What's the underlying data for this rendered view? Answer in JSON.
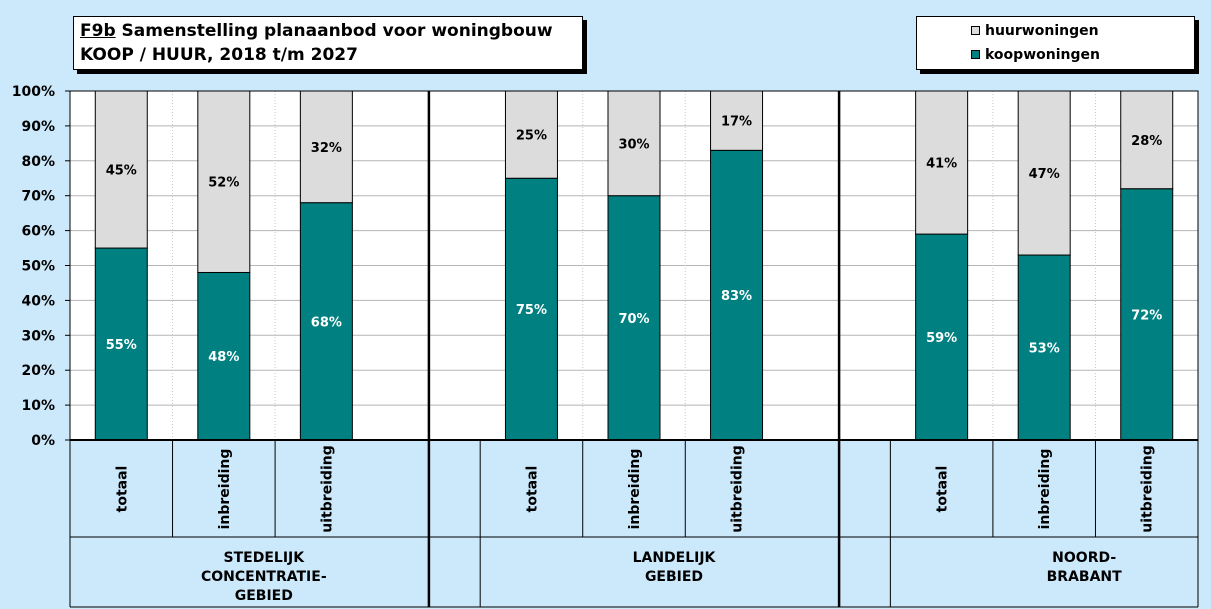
{
  "title": {
    "code": "F9b",
    "line1": "Samenstelling planaanbod voor woningbouw",
    "line2": "KOOP / HUUR,  2018 t/m 2027"
  },
  "colors": {
    "koop": "#008080",
    "huur": "#dcdcdc",
    "background": "#cce9fb"
  },
  "chart_data": {
    "type": "bar",
    "stacked": true,
    "y_unit": "percent",
    "ylim": [
      0,
      100
    ],
    "y_ticks": [
      "0%",
      "10%",
      "20%",
      "30%",
      "40%",
      "50%",
      "60%",
      "70%",
      "80%",
      "90%",
      "100%"
    ],
    "grid": true,
    "legend_position": "top-right",
    "groups": [
      {
        "label_lines": [
          "STEDELIJK",
          "CONCENTRATIE-",
          "GEBIED"
        ],
        "categories": [
          "totaal",
          "inbreiding",
          "uitbreiding"
        ]
      },
      {
        "label_lines": [
          "LANDELIJK",
          "GEBIED"
        ],
        "categories": [
          "totaal",
          "inbreiding",
          "uitbreiding"
        ]
      },
      {
        "label_lines": [
          "NOORD-",
          "BRABANT"
        ],
        "categories": [
          "totaal",
          "inbreiding",
          "uitbreiding"
        ]
      }
    ],
    "series": [
      {
        "name": "koopwoningen",
        "key": "koop",
        "values": [
          55,
          48,
          68,
          75,
          70,
          83,
          59,
          53,
          72
        ],
        "labels": [
          "55%",
          "48%",
          "68%",
          "75%",
          "70%",
          "83%",
          "59%",
          "53%",
          "72%"
        ]
      },
      {
        "name": "huurwoningen",
        "key": "huur",
        "values": [
          45,
          52,
          32,
          25,
          30,
          17,
          41,
          47,
          28
        ],
        "labels": [
          "45%",
          "52%",
          "32%",
          "25%",
          "30%",
          "17%",
          "41%",
          "47%",
          "28%"
        ]
      }
    ]
  }
}
